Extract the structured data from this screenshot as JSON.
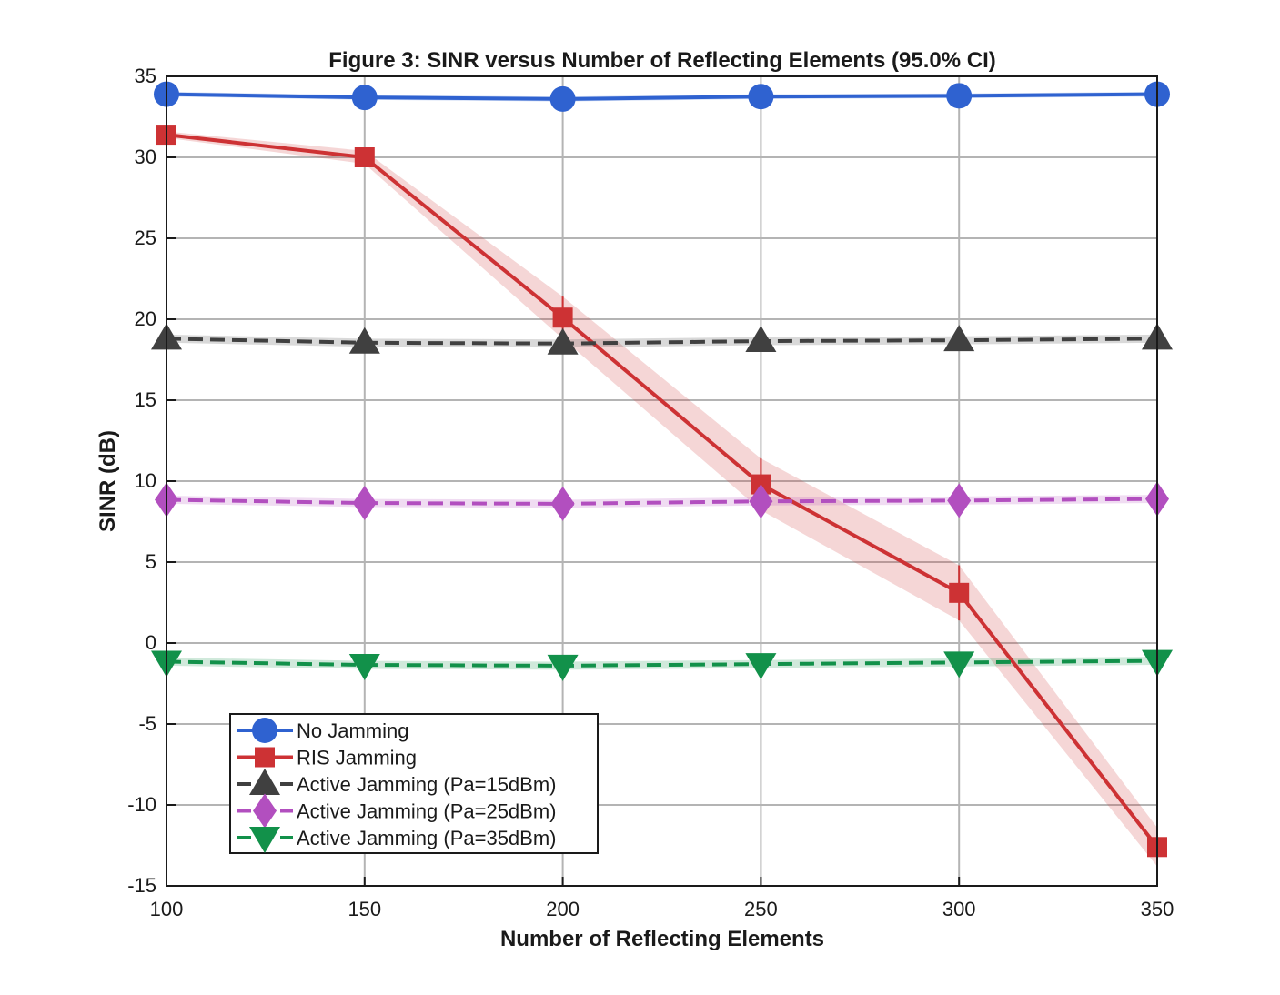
{
  "chart_data": {
    "type": "line",
    "title": "Figure 3: SINR versus Number of Reflecting Elements (95.0% CI)",
    "xlabel": "Number of Reflecting Elements",
    "ylabel": "SINR (dB)",
    "x": [
      100,
      150,
      200,
      250,
      300,
      350
    ],
    "xlim": [
      100,
      350
    ],
    "ylim": [
      -15,
      35
    ],
    "xticks": [
      100,
      150,
      200,
      250,
      300,
      350
    ],
    "yticks": [
      -15,
      -10,
      -5,
      0,
      5,
      10,
      15,
      20,
      25,
      30,
      35
    ],
    "grid": true,
    "legend_position": "bottom-left",
    "series": [
      {
        "name": "No Jamming",
        "color": "#2f62d0",
        "marker": "circle",
        "dashed": false,
        "values": [
          33.9,
          33.7,
          33.6,
          33.75,
          33.8,
          33.9
        ],
        "ci": [
          0.15,
          0.15,
          0.15,
          0.15,
          0.15,
          0.15
        ]
      },
      {
        "name": "RIS Jamming",
        "color": "#cd3234",
        "marker": "square",
        "dashed": false,
        "values": [
          31.4,
          30.0,
          20.1,
          9.8,
          3.1,
          -12.6
        ],
        "ci": [
          0.2,
          0.4,
          1.3,
          1.6,
          1.7,
          1.2
        ]
      },
      {
        "name": "Active Jamming (Pa=15dBm)",
        "color": "#404040",
        "marker": "triangle-up",
        "dashed": true,
        "values": [
          18.8,
          18.55,
          18.5,
          18.65,
          18.7,
          18.8
        ],
        "ci": [
          0.25,
          0.25,
          0.25,
          0.25,
          0.25,
          0.25
        ]
      },
      {
        "name": "Active Jamming (Pa=25dBm)",
        "color": "#b24fbf",
        "marker": "diamond",
        "dashed": true,
        "values": [
          8.85,
          8.65,
          8.6,
          8.75,
          8.8,
          8.9
        ],
        "ci": [
          0.25,
          0.25,
          0.25,
          0.25,
          0.25,
          0.25
        ]
      },
      {
        "name": "Active Jamming (Pa=35dBm)",
        "color": "#12914a",
        "marker": "triangle-down",
        "dashed": true,
        "values": [
          -1.15,
          -1.35,
          -1.4,
          -1.3,
          -1.2,
          -1.1
        ],
        "ci": [
          0.25,
          0.25,
          0.25,
          0.25,
          0.25,
          0.25
        ]
      }
    ]
  }
}
